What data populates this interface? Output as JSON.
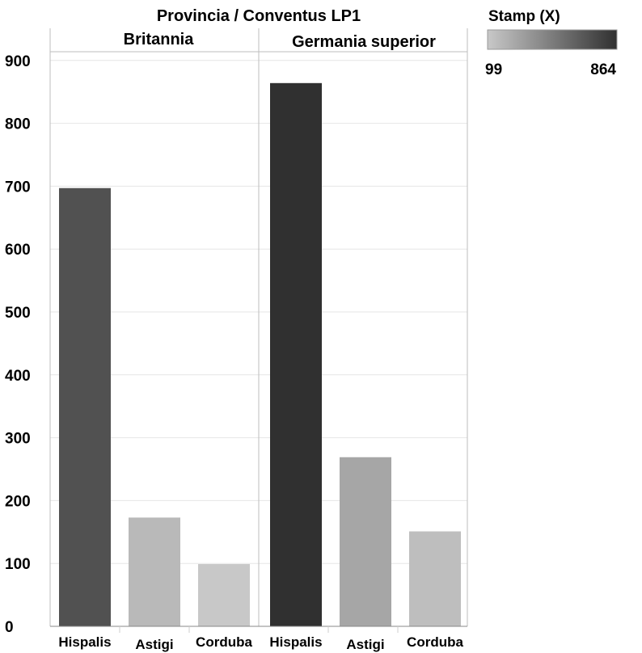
{
  "chart_data": {
    "type": "bar",
    "title": "Provincia / Conventus LP1",
    "panels": [
      {
        "name": "Britannia",
        "categories": [
          "Hispalis",
          "Astigi",
          "Corduba"
        ],
        "values": [
          697,
          173,
          99
        ]
      },
      {
        "name": "Germania superior",
        "categories": [
          "Hispalis",
          "Astigi",
          "Corduba"
        ],
        "values": [
          864,
          269,
          151
        ]
      }
    ],
    "ylim": [
      0,
      910
    ],
    "yticks": [
      "0",
      "100",
      "200",
      "300",
      "400",
      "500",
      "600",
      "700",
      "800",
      "900"
    ],
    "grid": true,
    "legend": {
      "title": "Stamp (X)",
      "min_label": "99",
      "max_label": "864",
      "min_value": 99,
      "max_value": 864,
      "color_low": "#c8c8c8",
      "color_high": "#303030",
      "position": "top-right"
    }
  }
}
